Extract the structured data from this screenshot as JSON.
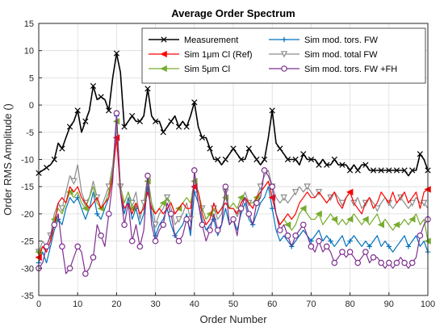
{
  "chart_data": {
    "type": "line",
    "title": "Average Order Spectrum",
    "xlabel": "Order Number",
    "ylabel": "Order RMS Amplitude ()",
    "xlim": [
      0,
      100
    ],
    "ylim": [
      -35,
      15
    ],
    "xticks": [
      0,
      10,
      20,
      30,
      40,
      50,
      60,
      70,
      80,
      90,
      100
    ],
    "yticks": [
      -35,
      -30,
      -25,
      -20,
      -15,
      -10,
      -5,
      0,
      5,
      10,
      15
    ],
    "grid": true,
    "legend": {
      "position": "top-right",
      "columns": 2
    },
    "x": [
      0,
      1,
      2,
      3,
      4,
      5,
      6,
      7,
      8,
      9,
      10,
      11,
      12,
      13,
      14,
      15,
      16,
      17,
      18,
      19,
      20,
      21,
      22,
      23,
      24,
      25,
      26,
      27,
      28,
      29,
      30,
      31,
      32,
      33,
      34,
      35,
      36,
      37,
      38,
      39,
      40,
      41,
      42,
      43,
      44,
      45,
      46,
      47,
      48,
      49,
      50,
      51,
      52,
      53,
      54,
      55,
      56,
      57,
      58,
      59,
      60,
      61,
      62,
      63,
      64,
      65,
      66,
      67,
      68,
      69,
      70,
      71,
      72,
      73,
      74,
      75,
      76,
      77,
      78,
      79,
      80,
      81,
      82,
      83,
      84,
      85,
      86,
      87,
      88,
      89,
      90,
      91,
      92,
      93,
      94,
      95,
      96,
      97,
      98,
      99,
      100
    ],
    "series": [
      {
        "name": "Measurement",
        "color": "#000000",
        "marker": "x",
        "marker_every": 2,
        "values": [
          -12.5,
          -12,
          -11.5,
          -11,
          -10,
          -7,
          -8,
          -6,
          -4,
          -3,
          -1,
          -5,
          -3,
          -1,
          3.5,
          1,
          1.5,
          1,
          -1,
          5,
          9.5,
          6,
          -4,
          -3,
          -2,
          -3,
          -3,
          -2,
          3,
          -2,
          -3,
          -3,
          -5,
          -4,
          -3,
          -2,
          -4,
          -3,
          -4,
          -2,
          0.5,
          -4,
          -6,
          -6,
          -8,
          -10,
          -10,
          -11,
          -10,
          -9,
          -8,
          -9,
          -10,
          -10,
          -8,
          -9,
          -10,
          -11,
          -10,
          -6,
          -1,
          -7,
          -8,
          -9,
          -10,
          -10,
          -10,
          -11,
          -9,
          -10,
          -10,
          -10,
          -11,
          -10,
          -11,
          -11,
          -10,
          -11,
          -11,
          -11,
          -12,
          -11,
          -12,
          -11,
          -11,
          -12,
          -12,
          -12,
          -12,
          -12,
          -12,
          -12,
          -12,
          -12,
          -12,
          -13,
          -12,
          -12,
          -9,
          -10,
          -12
        ]
      },
      {
        "name": "Sim 1μm Cl (Ref)",
        "color": "#ff0000",
        "marker": "triangle-left",
        "marker_every": 20,
        "values": [
          -28,
          -26,
          -27,
          -25,
          -22,
          -18,
          -17,
          -18,
          -15,
          -16,
          -15,
          -17,
          -18,
          -19,
          -18,
          -17,
          -19,
          -18,
          -17,
          -13,
          -6,
          -16,
          -19,
          -18,
          -20,
          -18,
          -20,
          -19,
          -16,
          -19,
          -20,
          -19,
          -20,
          -19,
          -18,
          -20,
          -19,
          -18,
          -19,
          -19,
          -15,
          -16,
          -20,
          -22,
          -21,
          -18,
          -20,
          -19,
          -18,
          -19,
          -19,
          -20,
          -18,
          -17,
          -18,
          -19,
          -17,
          -16,
          -15,
          -14,
          -17,
          -20,
          -22,
          -21,
          -20,
          -21,
          -20,
          -18,
          -17,
          -16,
          -17,
          -17,
          -16,
          -17,
          -18,
          -17,
          -16,
          -18,
          -19,
          -17,
          -16,
          -18,
          -19,
          -20,
          -18,
          -17,
          -19,
          -18,
          -16,
          -17,
          -18,
          -16,
          -18,
          -17,
          -16,
          -18,
          -17,
          -16,
          -19,
          -16,
          -15.5
        ]
      },
      {
        "name": "Sim 5μm Cl",
        "color": "#77ac30",
        "marker": "triangle-left",
        "marker_every": 4,
        "values": [
          -27,
          -26,
          -27,
          -25,
          -21,
          -19,
          -20,
          -18,
          -16,
          -17,
          -16,
          -18,
          -19,
          -17,
          -15,
          -18,
          -19,
          -18,
          -16,
          -12,
          -3,
          -15,
          -18,
          -16,
          -19,
          -18,
          -20,
          -19,
          -14,
          -18,
          -20,
          -19,
          -18,
          -17,
          -18,
          -20,
          -19,
          -18,
          -17,
          -18,
          -14,
          -16,
          -19,
          -21,
          -20,
          -19,
          -20,
          -19,
          -17,
          -19,
          -18,
          -19,
          -17,
          -17,
          -18,
          -18,
          -17,
          -16,
          -15,
          -14,
          -17,
          -20,
          -22,
          -21,
          -22,
          -23,
          -22,
          -20,
          -19,
          -20,
          -21,
          -21,
          -20,
          -22,
          -21,
          -20,
          -21,
          -22,
          -21,
          -22,
          -21,
          -20,
          -21,
          -22,
          -21,
          -22,
          -21,
          -20,
          -22,
          -21,
          -22,
          -23,
          -22,
          -22,
          -21,
          -22,
          -21,
          -20,
          -22,
          -21,
          -25
        ]
      },
      {
        "name": "Sim mod. tors. FW",
        "color": "#0072bd",
        "marker": "plus",
        "marker_every": 5,
        "values": [
          -29,
          -27,
          -29,
          -26,
          -23,
          -21,
          -22,
          -19,
          -17,
          -18,
          -17,
          -19,
          -21,
          -19,
          -16,
          -20,
          -21,
          -19,
          -17,
          -12,
          -2,
          -16,
          -20,
          -17,
          -21,
          -19,
          -22,
          -20,
          -15,
          -20,
          -24,
          -22,
          -21,
          -19,
          -22,
          -24,
          -23,
          -22,
          -20,
          -24,
          -16,
          -18,
          -21,
          -23,
          -22,
          -21,
          -24,
          -22,
          -19,
          -22,
          -21,
          -23,
          -20,
          -18,
          -21,
          -22,
          -20,
          -18,
          -17,
          -15,
          -19,
          -23,
          -25,
          -24,
          -25,
          -26,
          -25,
          -24,
          -23,
          -24,
          -25,
          -24,
          -23,
          -25,
          -24,
          -25,
          -26,
          -25,
          -24,
          -26,
          -25,
          -24,
          -25,
          -26,
          -25,
          -26,
          -25,
          -24,
          -26,
          -25,
          -26,
          -27,
          -26,
          -25,
          -24,
          -26,
          -25,
          -24,
          -26,
          -25,
          -27
        ]
      },
      {
        "name": "Sim mod. total FW",
        "color": "#8c8c8c",
        "marker": "triangle-down",
        "marker_every": 3,
        "values": [
          -27,
          -25,
          -26,
          -24,
          -20,
          -18,
          -19,
          -16,
          -13,
          -14,
          -11,
          -16,
          -18,
          -17,
          -14,
          -17,
          -19,
          -17,
          -15,
          -11,
          -4,
          -15,
          -18,
          -16,
          -18,
          -16,
          -21,
          -18,
          -13,
          -18,
          -22,
          -20,
          -19,
          -17,
          -19,
          -22,
          -21,
          -20,
          -18,
          -21,
          -13,
          -16,
          -19,
          -21,
          -20,
          -19,
          -21,
          -20,
          -16,
          -19,
          -19,
          -20,
          -18,
          -16,
          -18,
          -19,
          -17,
          -15,
          -13,
          -12,
          -15,
          -17,
          -18,
          -17,
          -18,
          -17,
          -16,
          -15,
          -16,
          -15,
          -16,
          -17,
          -16,
          -17,
          -18,
          -17,
          -16,
          -17,
          -18,
          -17,
          -16,
          -18,
          -17,
          -19,
          -18,
          -17,
          -18,
          -19,
          -18,
          -17,
          -18,
          -19,
          -18,
          -17,
          -18,
          -19,
          -18,
          -17,
          -18,
          -18,
          -19
        ]
      },
      {
        "name": "Sim mod. tors. FW +FH",
        "color": "#7e2f8e",
        "marker": "circle",
        "marker_every": 2,
        "values": [
          -30,
          -29,
          -26,
          -24,
          -22,
          -20,
          -26,
          -31,
          -30,
          -28,
          -26,
          -27,
          -31,
          -30,
          -28,
          -22,
          -24,
          -26,
          -20,
          -14,
          -1.5,
          -16,
          -22,
          -18,
          -25,
          -22,
          -26,
          -23,
          -13,
          -22,
          -25,
          -23,
          -22,
          -18,
          -20,
          -24,
          -25,
          -24,
          -21,
          -23,
          -12,
          -18,
          -22,
          -25,
          -23,
          -20,
          -23,
          -22,
          -15,
          -22,
          -21,
          -24,
          -19,
          -17,
          -20,
          -22,
          -18,
          -17,
          -12,
          -13,
          -15,
          -20,
          -23,
          -22,
          -24,
          -26,
          -24,
          -23,
          -22,
          -24,
          -26,
          -27,
          -25,
          -27,
          -26,
          -27,
          -29,
          -28,
          -27,
          -28,
          -27,
          -28,
          -29,
          -28,
          -27,
          -29,
          -28,
          -28,
          -29,
          -30,
          -29,
          -30,
          -29,
          -28,
          -29,
          -30,
          -29,
          -28,
          -24,
          -22,
          -21
        ]
      }
    ]
  }
}
